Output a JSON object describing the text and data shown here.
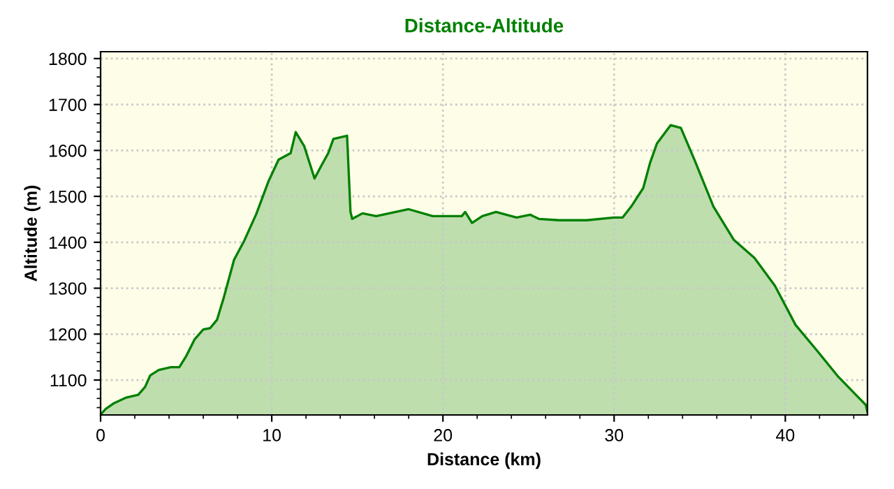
{
  "chart_data": {
    "type": "area",
    "title": "Distance-Altitude",
    "xlabel": "Distance (km)",
    "ylabel": "Altitude (m)",
    "x": [
      0,
      0.3,
      0.8,
      1.5,
      2.2,
      2.6,
      2.9,
      3.4,
      4.1,
      4.6,
      5.0,
      5.5,
      6.0,
      6.4,
      6.8,
      7.2,
      7.8,
      8.4,
      9.1,
      9.8,
      10.4,
      11.1,
      11.4,
      11.9,
      12.5,
      12.9,
      13.3,
      13.6,
      14.4,
      14.6,
      14.7,
      15.3,
      16.1,
      18.0,
      19.4,
      21.1,
      21.3,
      21.7,
      22.3,
      23.1,
      24.3,
      25.1,
      25.6,
      26.8,
      28.4,
      30.0,
      30.5,
      31.0,
      31.7,
      32.1,
      32.5,
      33.3,
      33.9,
      34.7,
      35.8,
      37.0,
      38.2,
      39.4,
      40.6,
      41.9,
      43.1,
      44.3,
      44.7,
      44.8
    ],
    "series": [
      {
        "color": "#008000",
        "values": [
          1025,
          1037,
          1050,
          1062,
          1068,
          1085,
          1110,
          1122,
          1128,
          1128,
          1152,
          1189,
          1210,
          1213,
          1231,
          1280,
          1362,
          1404,
          1462,
          1532,
          1580,
          1594,
          1640,
          1609,
          1539,
          1567,
          1594,
          1625,
          1632,
          1466,
          1451,
          1463,
          1457,
          1472,
          1457,
          1457,
          1466,
          1442,
          1457,
          1466,
          1454,
          1460,
          1451,
          1448,
          1448,
          1454,
          1454,
          1478,
          1518,
          1573,
          1615,
          1655,
          1649,
          1579,
          1478,
          1405,
          1366,
          1305,
          1220,
          1162,
          1107,
          1061,
          1046,
          1031
        ]
      }
    ],
    "xlim": [
      0,
      44.8
    ],
    "ylim": [
      1024,
      1815
    ],
    "xticks": [
      0,
      10,
      20,
      30,
      40
    ],
    "yticks": [
      1100,
      1200,
      1300,
      1400,
      1500,
      1600,
      1700,
      1800
    ],
    "grid": true,
    "line_style": "solid"
  }
}
